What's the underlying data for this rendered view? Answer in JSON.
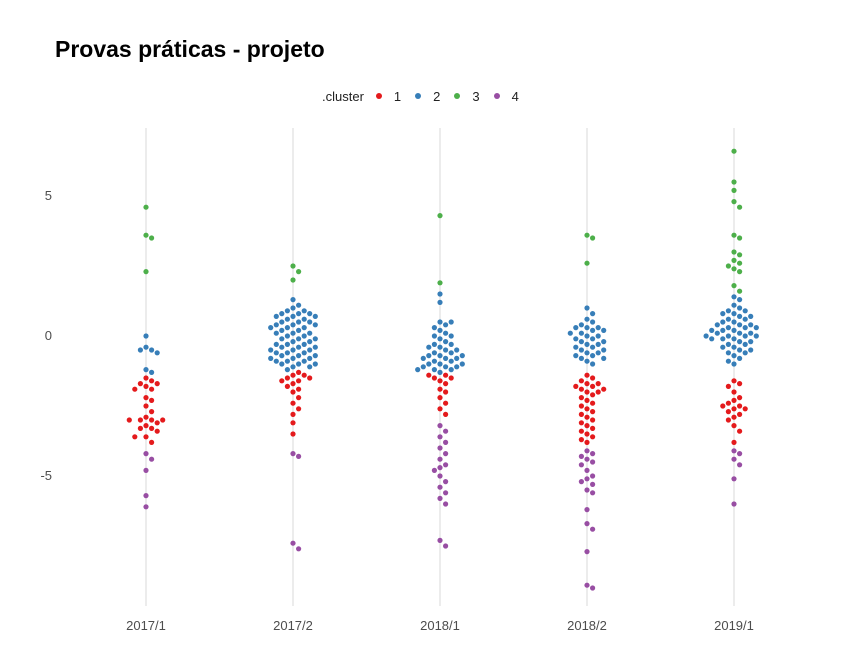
{
  "title": "Provas práticas - projeto",
  "legend": {
    "title": ".cluster",
    "items": [
      {
        "label": "1",
        "color": "#e41a1c"
      },
      {
        "label": "2",
        "color": "#377eb8"
      },
      {
        "label": "3",
        "color": "#4daf4a"
      },
      {
        "label": "4",
        "color": "#984ea3"
      }
    ]
  },
  "chart_data": {
    "type": "scatter",
    "subtype": "beeswarm",
    "title": "Provas práticas - projeto",
    "xlabel": "",
    "ylabel": "",
    "categories": [
      "2017/1",
      "2017/2",
      "2018/1",
      "2018/2",
      "2019/1"
    ],
    "yticks": [
      5,
      0,
      -5
    ],
    "ylim": [
      -10,
      7.5
    ],
    "grid": "vertical lines at categories only",
    "legend_position": "top",
    "cluster_colors": {
      "1": "#e41a1c",
      "2": "#377eb8",
      "3": "#4daf4a",
      "4": "#984ea3"
    },
    "series": [
      {
        "category": "2017/1",
        "clusters": {
          "3": [
            4.6,
            3.6,
            3.5,
            2.3
          ],
          "2": [
            0.0,
            -0.4,
            -0.5,
            -0.5,
            -0.6,
            -1.2,
            -1.3
          ],
          "1": [
            -1.5,
            -1.6,
            -1.7,
            -1.7,
            -1.8,
            -1.9,
            -1.9,
            -2.2,
            -2.3,
            -2.5,
            -2.7,
            -2.9,
            -3.0,
            -3.0,
            -3.0,
            -3.0,
            -3.1,
            -3.2,
            -3.3,
            -3.3,
            -3.4,
            -3.6,
            -3.6,
            -3.8
          ],
          "4": [
            -4.2,
            -4.4,
            -4.8,
            -5.7,
            -6.1
          ]
        }
      },
      {
        "category": "2017/2",
        "clusters": {
          "3": [
            2.5,
            2.3,
            2.0
          ],
          "2": [
            1.3,
            1.1,
            1.0,
            0.9,
            0.9,
            0.8,
            0.8,
            0.8,
            0.7,
            0.7,
            0.7,
            0.6,
            0.6,
            0.5,
            0.5,
            0.5,
            0.4,
            0.4,
            0.4,
            0.3,
            0.3,
            0.3,
            0.2,
            0.2,
            0.1,
            0.1,
            0.1,
            0.0,
            0.0,
            -0.1,
            -0.1,
            -0.1,
            -0.2,
            -0.2,
            -0.3,
            -0.3,
            -0.3,
            -0.4,
            -0.4,
            -0.4,
            -0.5,
            -0.5,
            -0.5,
            -0.6,
            -0.6,
            -0.6,
            -0.7,
            -0.7,
            -0.7,
            -0.8,
            -0.8,
            -0.8,
            -0.9,
            -0.9,
            -0.9,
            -1.0,
            -1.0,
            -1.0,
            -1.1,
            -1.1,
            -1.2
          ],
          "1": [
            -1.3,
            -1.4,
            -1.4,
            -1.5,
            -1.5,
            -1.6,
            -1.6,
            -1.7,
            -1.8,
            -1.9,
            -2.0,
            -2.2,
            -2.4,
            -2.6,
            -2.8,
            -3.1,
            -3.5
          ],
          "4": [
            -4.2,
            -4.3,
            -7.4,
            -7.6
          ]
        }
      },
      {
        "category": "2018/1",
        "clusters": {
          "3": [
            4.3,
            1.9
          ],
          "2": [
            1.5,
            1.2,
            0.5,
            0.5,
            0.4,
            0.3,
            0.2,
            0.1,
            0.0,
            0.0,
            -0.1,
            -0.2,
            -0.3,
            -0.3,
            -0.4,
            -0.4,
            -0.5,
            -0.5,
            -0.6,
            -0.6,
            -0.7,
            -0.7,
            -0.7,
            -0.8,
            -0.8,
            -0.8,
            -0.9,
            -0.9,
            -1.0,
            -1.0,
            -1.0,
            -1.1,
            -1.1,
            -1.1,
            -1.2,
            -1.2,
            -1.2,
            -1.3
          ],
          "1": [
            -1.4,
            -1.4,
            -1.5,
            -1.5,
            -1.6,
            -1.7,
            -1.9,
            -2.0,
            -2.2,
            -2.4,
            -2.6,
            -2.8
          ],
          "4": [
            -3.2,
            -3.4,
            -3.6,
            -3.8,
            -4.0,
            -4.2,
            -4.4,
            -4.6,
            -4.7,
            -4.8,
            -5.0,
            -5.2,
            -5.4,
            -5.6,
            -5.8,
            -6.0,
            -7.3,
            -7.5
          ]
        }
      },
      {
        "category": "2018/2",
        "clusters": {
          "3": [
            3.6,
            3.5,
            2.6
          ],
          "2": [
            1.0,
            0.8,
            0.6,
            0.5,
            0.4,
            0.3,
            0.3,
            0.3,
            0.2,
            0.2,
            0.1,
            0.1,
            0.0,
            0.0,
            -0.1,
            -0.1,
            -0.2,
            -0.2,
            -0.3,
            -0.3,
            -0.4,
            -0.4,
            -0.5,
            -0.5,
            -0.6,
            -0.6,
            -0.7,
            -0.7,
            -0.8,
            -0.8,
            -0.9,
            -1.0
          ],
          "1": [
            -1.4,
            -1.5,
            -1.6,
            -1.7,
            -1.7,
            -1.8,
            -1.8,
            -1.9,
            -1.9,
            -2.0,
            -2.0,
            -2.1,
            -2.2,
            -2.3,
            -2.4,
            -2.5,
            -2.6,
            -2.7,
            -2.8,
            -2.9,
            -3.0,
            -3.1,
            -3.2,
            -3.3,
            -3.4,
            -3.5,
            -3.6,
            -3.7,
            -3.8
          ],
          "4": [
            -4.1,
            -4.2,
            -4.3,
            -4.4,
            -4.5,
            -4.6,
            -4.8,
            -5.0,
            -5.1,
            -5.2,
            -5.3,
            -5.5,
            -5.6,
            -6.2,
            -6.7,
            -6.9,
            -7.7,
            -8.9,
            -9.0
          ]
        }
      },
      {
        "category": "2019/1",
        "clusters": {
          "3": [
            6.6,
            5.5,
            5.2,
            4.8,
            4.6,
            3.6,
            3.5,
            3.0,
            2.9,
            2.7,
            2.6,
            2.5,
            2.4,
            2.3,
            1.8,
            1.6
          ],
          "2": [
            1.4,
            1.3,
            1.1,
            1.0,
            0.9,
            0.9,
            0.8,
            0.8,
            0.7,
            0.7,
            0.6,
            0.6,
            0.5,
            0.5,
            0.4,
            0.4,
            0.4,
            0.3,
            0.3,
            0.3,
            0.2,
            0.2,
            0.2,
            0.1,
            0.1,
            0.1,
            0.0,
            0.0,
            0.0,
            0.0,
            -0.1,
            -0.1,
            -0.1,
            -0.2,
            -0.2,
            -0.3,
            -0.3,
            -0.4,
            -0.4,
            -0.5,
            -0.5,
            -0.6,
            -0.6,
            -0.7,
            -0.8,
            -0.9,
            -1.0
          ],
          "1": [
            -1.6,
            -1.7,
            -1.8,
            -2.0,
            -2.2,
            -2.3,
            -2.4,
            -2.5,
            -2.5,
            -2.6,
            -2.6,
            -2.7,
            -2.8,
            -2.9,
            -3.0,
            -3.2,
            -3.4,
            -3.8
          ],
          "4": [
            -4.1,
            -4.2,
            -4.4,
            -4.6,
            -5.1,
            -6.0
          ]
        }
      }
    ]
  }
}
